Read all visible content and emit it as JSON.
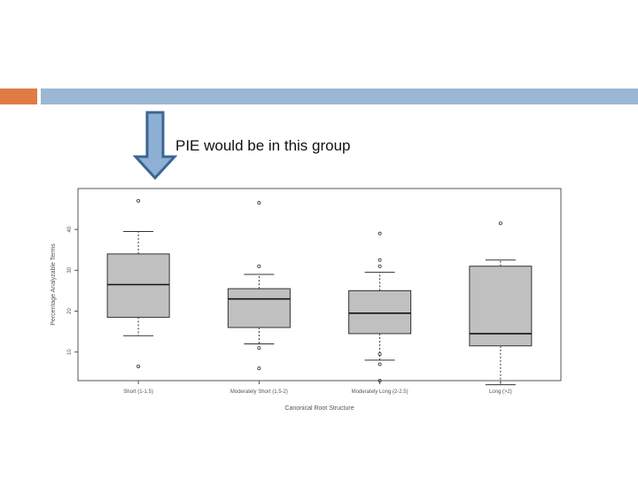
{
  "caption": "PIE would be in this group",
  "colors": {
    "accent_orange": "#e07b45",
    "accent_blue": "#9ab7d3",
    "arrow_fill": "#8eb0d4",
    "arrow_stroke": "#3d6593",
    "box_fill": "#c0c0c0"
  },
  "arrow_icon": "down-arrow-icon",
  "chart_data": {
    "type": "boxplot",
    "xlabel": "Canonical Root Structure",
    "ylabel": "Percentage Analyzable Terms",
    "ylim": [
      3,
      50
    ],
    "yticks": [
      10,
      20,
      30,
      40
    ],
    "categories": [
      "Short (1-1.5)",
      "Moderately Short (1.5-2)",
      "Moderately Long (2-2.5)",
      "Long (>2)"
    ],
    "boxes": [
      {
        "whisker_low": 14,
        "q1": 18.5,
        "median": 26.5,
        "q3": 34,
        "whisker_high": 39.5,
        "outliers": [
          47,
          6.5
        ]
      },
      {
        "whisker_low": 12,
        "q1": 16,
        "median": 23,
        "q3": 25.5,
        "whisker_high": 29,
        "outliers": [
          46.5,
          31,
          11,
          6
        ]
      },
      {
        "whisker_low": 8,
        "q1": 14.5,
        "median": 19.5,
        "q3": 25,
        "whisker_high": 29.5,
        "outliers": [
          39,
          32.5,
          31,
          9.5,
          7,
          3
        ]
      },
      {
        "whisker_low": 2,
        "q1": 11.5,
        "median": 14.5,
        "q3": 31,
        "whisker_high": 32.5,
        "outliers": [
          41.5
        ]
      }
    ]
  }
}
